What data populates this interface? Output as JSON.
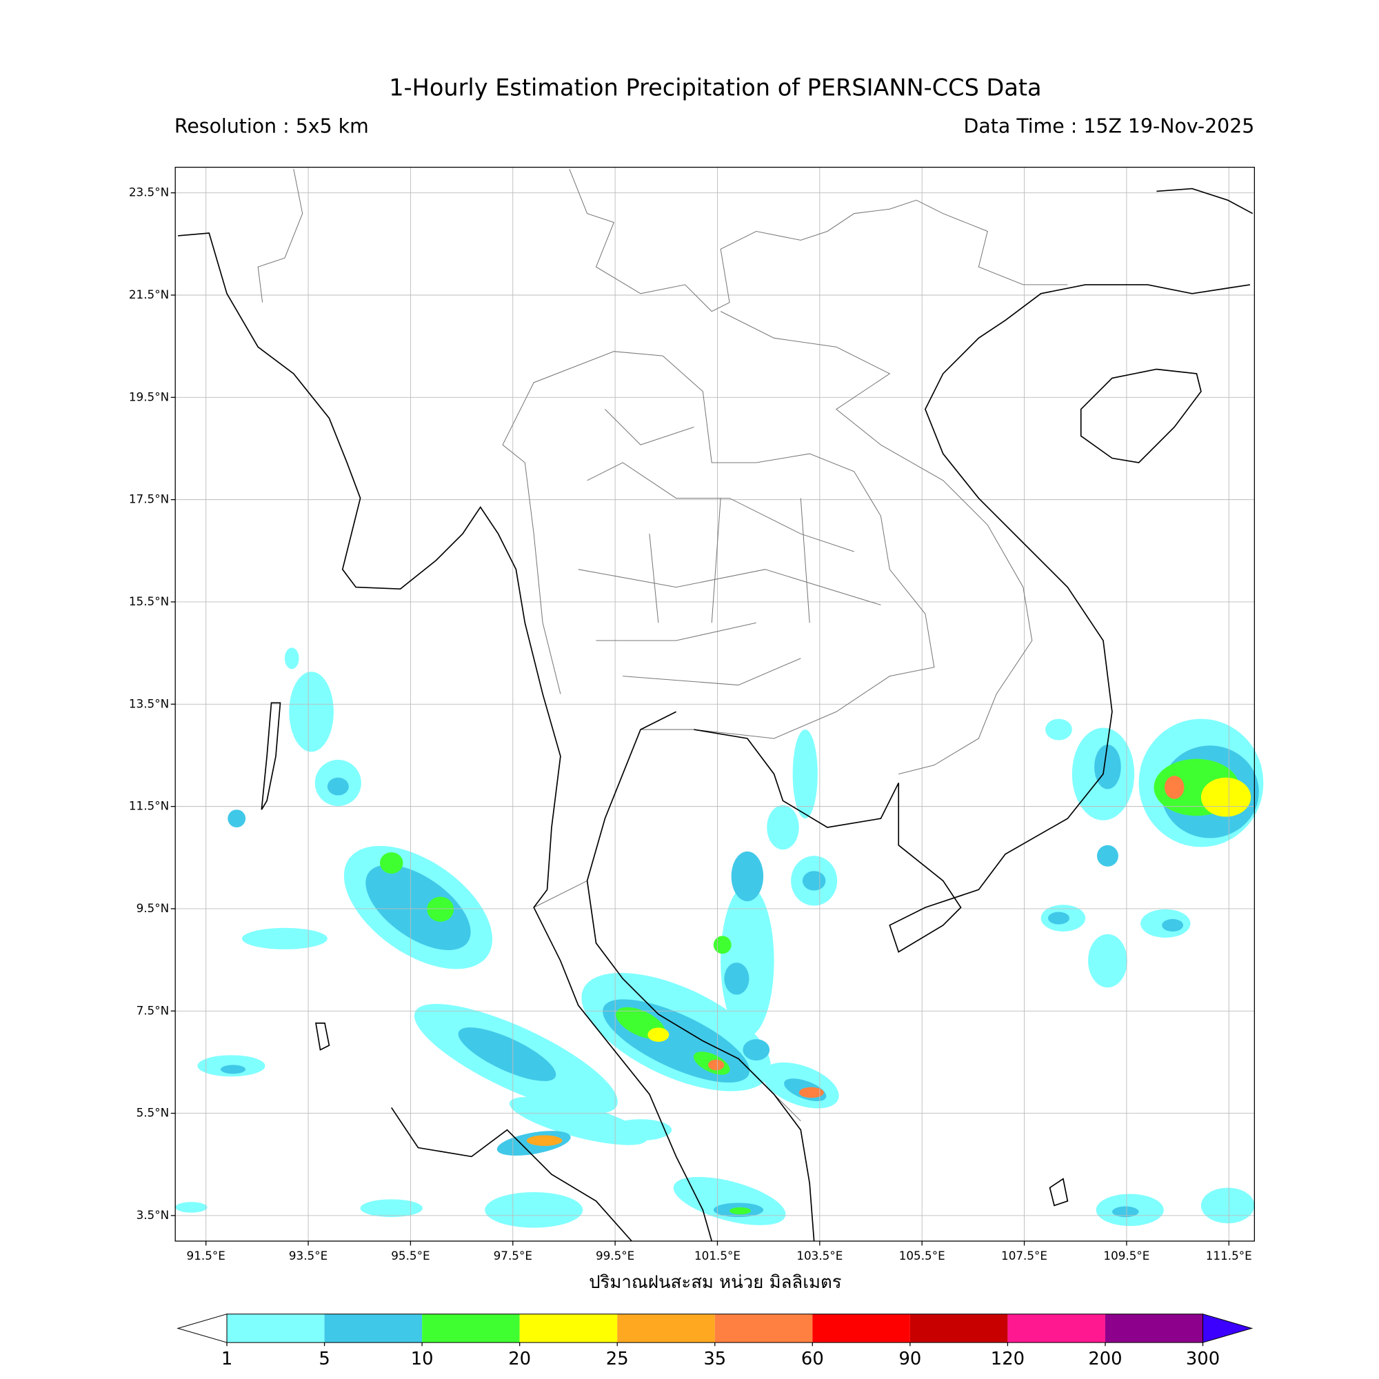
{
  "title": "1-Hourly Estimation Precipitation of PERSIANN-CCS Data",
  "resolution": "Resolution : 5x5 km",
  "data_time": "Data Time : 15Z 19-Nov-2025",
  "map": {
    "xlim": [
      90.9,
      112.0
    ],
    "ylim": [
      3.0,
      24.0
    ],
    "grid": true,
    "xticks": [
      {
        "value": 91.5,
        "label": "91.5°E"
      },
      {
        "value": 93.5,
        "label": "93.5°E"
      },
      {
        "value": 95.5,
        "label": "95.5°E"
      },
      {
        "value": 97.5,
        "label": "97.5°E"
      },
      {
        "value": 99.5,
        "label": "99.5°E"
      },
      {
        "value": 101.5,
        "label": "101.5°E"
      },
      {
        "value": 103.5,
        "label": "103.5°E"
      },
      {
        "value": 105.5,
        "label": "105.5°E"
      },
      {
        "value": 107.5,
        "label": "107.5°E"
      },
      {
        "value": 109.5,
        "label": "109.5°E"
      },
      {
        "value": 111.5,
        "label": "111.5°E"
      }
    ],
    "yticks": [
      {
        "value": 3.5,
        "label": "3.5°N"
      },
      {
        "value": 5.5,
        "label": "5.5°N"
      },
      {
        "value": 7.5,
        "label": "7.5°N"
      },
      {
        "value": 9.5,
        "label": "9.5°N"
      },
      {
        "value": 11.5,
        "label": "11.5°N"
      },
      {
        "value": 13.5,
        "label": "13.5°N"
      },
      {
        "value": 15.5,
        "label": "15.5°N"
      },
      {
        "value": 17.5,
        "label": "17.5°N"
      },
      {
        "value": 19.5,
        "label": "19.5°N"
      },
      {
        "value": 21.5,
        "label": "21.5°N"
      },
      {
        "value": 23.5,
        "label": "23.5°N"
      }
    ],
    "xlabel": "ปริมาณฝนสะสม หน่วย มิลลิเมตร"
  },
  "colorbar": {
    "levels": [
      1,
      5,
      10,
      20,
      25,
      35,
      60,
      90,
      120,
      200,
      300
    ],
    "colors": [
      "#80ffff",
      "#40c8e8",
      "#40ff30",
      "#ffff00",
      "#ffa820",
      "#ff8040",
      "#ff0000",
      "#c80000",
      "#ff1890",
      "#8c008c"
    ],
    "under_color": "#ffffff",
    "over_color": "#3c00ff"
  }
}
